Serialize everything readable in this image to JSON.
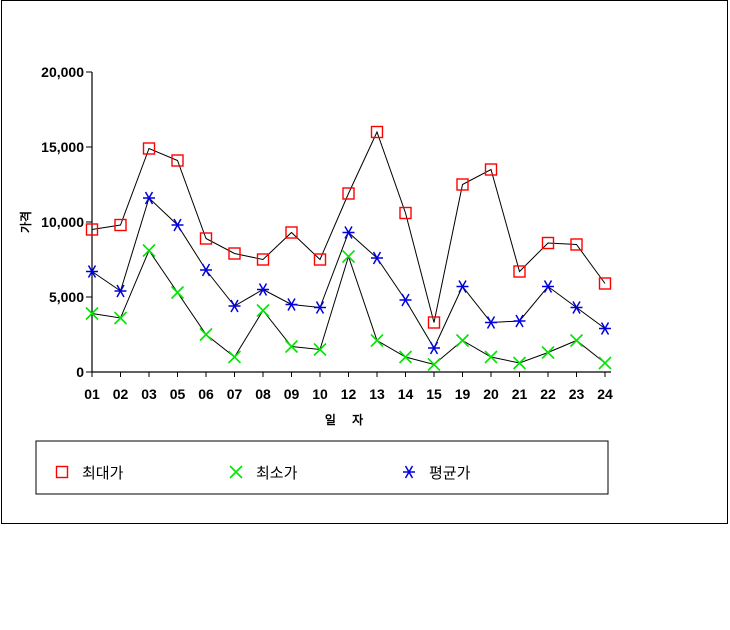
{
  "chart_data": {
    "type": "line",
    "categories": [
      "01",
      "02",
      "03",
      "05",
      "06",
      "07",
      "08",
      "09",
      "10",
      "12",
      "13",
      "14",
      "15",
      "19",
      "20",
      "21",
      "22",
      "23",
      "24"
    ],
    "ylabel": "가격",
    "xlabel": "일 자",
    "ylim": [
      0,
      20000
    ],
    "yticks": [
      0,
      5000,
      10000,
      15000,
      20000
    ],
    "ytick_labels": [
      "0",
      "5,000",
      "10,000",
      "15,000",
      "20,000"
    ],
    "grid": false,
    "legend_position": "bottom",
    "series": [
      {
        "name": "최대가",
        "marker": "square",
        "color": "#ff0000",
        "values": [
          9500,
          9800,
          14900,
          14100,
          8900,
          7900,
          7500,
          9300,
          7500,
          11900,
          16000,
          10600,
          3300,
          12500,
          13500,
          6700,
          8600,
          8500,
          5900
        ]
      },
      {
        "name": "최소가",
        "marker": "x",
        "color": "#00e600",
        "values": [
          3900,
          3600,
          8100,
          5300,
          2500,
          1000,
          4100,
          1700,
          1500,
          7700,
          2100,
          1000,
          500,
          2100,
          1000,
          600,
          1300,
          2100,
          600
        ]
      },
      {
        "name": "평균가",
        "marker": "asterisk",
        "color": "#0000dd",
        "values": [
          6700,
          5400,
          11600,
          9800,
          6800,
          4400,
          5500,
          4500,
          4300,
          9300,
          7600,
          4800,
          1600,
          5700,
          3300,
          3400,
          5700,
          4300,
          2900
        ]
      }
    ]
  }
}
